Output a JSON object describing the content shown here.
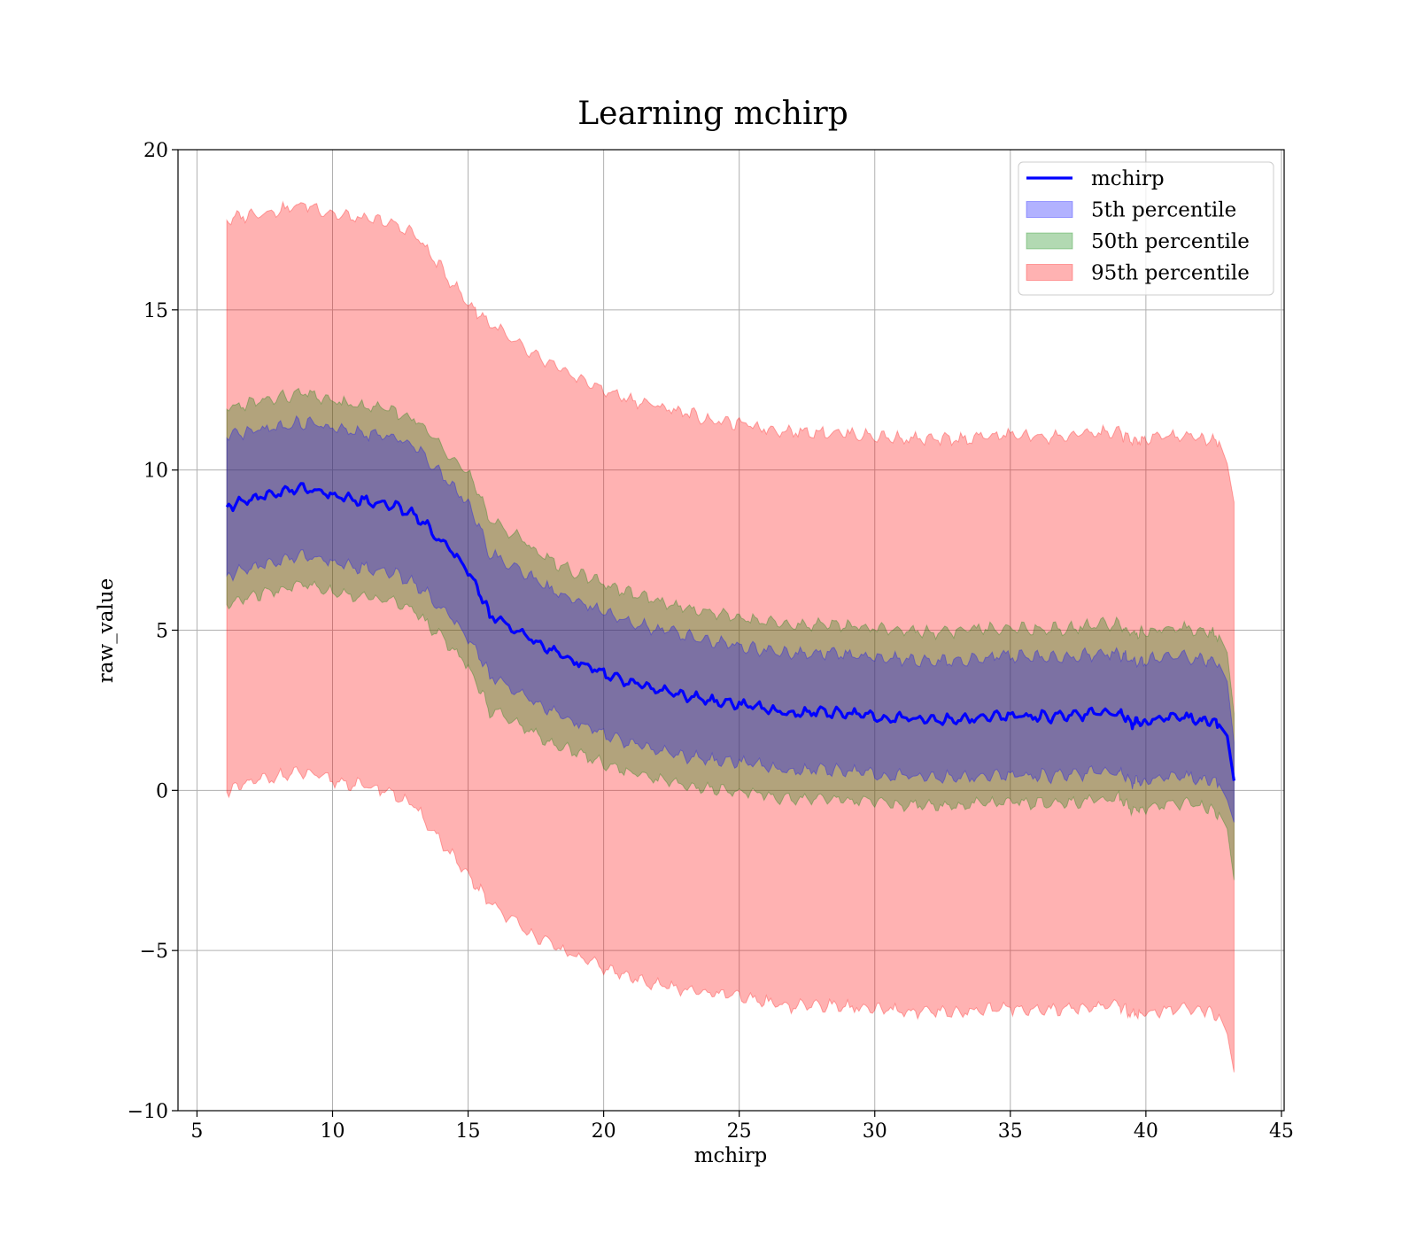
{
  "chart_data": {
    "type": "line",
    "title": "Learning mchirp",
    "xlabel": "mchirp",
    "ylabel": "raw_value",
    "xlim": [
      4.3,
      45.1
    ],
    "ylim": [
      -10,
      20
    ],
    "xticks": [
      5,
      10,
      15,
      20,
      25,
      30,
      35,
      40,
      45
    ],
    "yticks": [
      -10,
      -5,
      0,
      5,
      10,
      15,
      20
    ],
    "ytick_labels": [
      "−10",
      "−5",
      "0",
      "5",
      "10",
      "15",
      "20"
    ],
    "grid": true,
    "legend_position": "top-right",
    "x": [
      6.1,
      7,
      8,
      9,
      10,
      11,
      12,
      13,
      14,
      15,
      15.8,
      17,
      18,
      19,
      20,
      21,
      22,
      23,
      24,
      25,
      26,
      27,
      28,
      29,
      30,
      31,
      32,
      33,
      34,
      35,
      36,
      37,
      38,
      39,
      39.5,
      40,
      41,
      42,
      42.7,
      43,
      43.25
    ],
    "series": [
      {
        "name": "mchirp",
        "kind": "line",
        "color": "#0000ff",
        "values": [
          8.85,
          9.1,
          9.3,
          9.45,
          9.2,
          9.05,
          8.95,
          8.65,
          7.8,
          6.9,
          5.5,
          4.9,
          4.4,
          4.0,
          3.65,
          3.35,
          3.15,
          2.95,
          2.8,
          2.7,
          2.55,
          2.4,
          2.45,
          2.4,
          2.3,
          2.25,
          2.2,
          2.2,
          2.3,
          2.35,
          2.3,
          2.3,
          2.4,
          2.45,
          2.1,
          2.15,
          2.35,
          2.2,
          2.05,
          1.7,
          0.3
        ]
      },
      {
        "name": "5th percentile",
        "kind": "band",
        "color": "#0000ff",
        "upper": [
          11.0,
          11.2,
          11.35,
          11.5,
          11.3,
          11.15,
          11.05,
          10.8,
          9.9,
          9.0,
          7.4,
          6.8,
          6.3,
          5.9,
          5.55,
          5.25,
          5.05,
          4.85,
          4.65,
          4.5,
          4.35,
          4.25,
          4.3,
          4.25,
          4.15,
          4.1,
          4.05,
          4.05,
          4.15,
          4.2,
          4.15,
          4.15,
          4.25,
          4.3,
          4.0,
          4.05,
          4.2,
          4.1,
          3.95,
          3.4,
          1.5
        ],
        "lower": [
          6.7,
          6.95,
          7.15,
          7.35,
          7.1,
          6.95,
          6.85,
          6.5,
          5.7,
          4.8,
          3.6,
          3.0,
          2.5,
          2.1,
          1.75,
          1.45,
          1.25,
          1.05,
          0.95,
          0.9,
          0.75,
          0.6,
          0.65,
          0.6,
          0.5,
          0.45,
          0.4,
          0.4,
          0.45,
          0.5,
          0.45,
          0.45,
          0.55,
          0.6,
          0.25,
          0.3,
          0.5,
          0.35,
          0.2,
          -0.3,
          -1.0
        ]
      },
      {
        "name": "50th percentile",
        "kind": "band",
        "color": "#008000",
        "upper": [
          11.9,
          12.1,
          12.25,
          12.4,
          12.15,
          12.0,
          11.9,
          11.6,
          10.8,
          9.9,
          8.5,
          7.8,
          7.2,
          6.8,
          6.45,
          6.15,
          5.9,
          5.7,
          5.55,
          5.4,
          5.25,
          5.15,
          5.2,
          5.15,
          5.05,
          5.0,
          4.95,
          4.95,
          5.05,
          5.1,
          5.05,
          5.05,
          5.15,
          5.2,
          4.9,
          4.95,
          5.1,
          5.0,
          4.85,
          4.3,
          2.4
        ],
        "lower": [
          5.8,
          6.05,
          6.25,
          6.45,
          6.2,
          6.05,
          5.95,
          5.6,
          4.8,
          3.9,
          2.5,
          2.0,
          1.5,
          1.2,
          0.85,
          0.55,
          0.35,
          0.15,
          0.05,
          0.0,
          -0.15,
          -0.3,
          -0.25,
          -0.3,
          -0.4,
          -0.45,
          -0.5,
          -0.5,
          -0.4,
          -0.35,
          -0.4,
          -0.4,
          -0.3,
          -0.25,
          -0.6,
          -0.55,
          -0.4,
          -0.5,
          -0.7,
          -1.2,
          -2.8
        ]
      },
      {
        "name": "95th percentile",
        "kind": "band",
        "color": "#ff0000",
        "upper": [
          17.8,
          18.0,
          18.1,
          18.3,
          18.0,
          17.85,
          17.75,
          17.4,
          16.3,
          15.2,
          14.6,
          13.8,
          13.3,
          12.9,
          12.5,
          12.2,
          12.0,
          11.8,
          11.55,
          11.45,
          11.3,
          11.2,
          11.2,
          11.15,
          11.05,
          11.0,
          10.95,
          10.95,
          11.05,
          11.1,
          11.05,
          11.05,
          11.15,
          11.2,
          10.9,
          10.95,
          11.1,
          11.0,
          10.9,
          10.2,
          9.0
        ],
        "lower": [
          -0.05,
          0.25,
          0.45,
          0.55,
          0.3,
          0.15,
          0.0,
          -0.5,
          -1.6,
          -2.7,
          -3.5,
          -4.3,
          -4.8,
          -5.2,
          -5.55,
          -5.85,
          -6.05,
          -6.25,
          -6.35,
          -6.45,
          -6.6,
          -6.75,
          -6.7,
          -6.75,
          -6.85,
          -6.9,
          -6.95,
          -6.95,
          -6.85,
          -6.8,
          -6.85,
          -6.85,
          -6.75,
          -6.7,
          -7.0,
          -6.95,
          -6.8,
          -6.9,
          -7.0,
          -7.6,
          -8.8
        ]
      }
    ]
  }
}
